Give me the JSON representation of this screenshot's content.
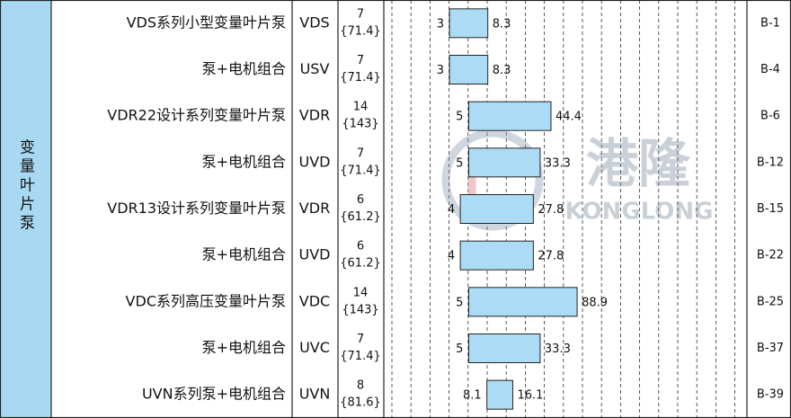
{
  "category": "变量叶片泵",
  "watermark": {
    "cn": "港隆",
    "en": "KONGLONG"
  },
  "rows": [
    {
      "name": "VDS系列小型变量叶片泵",
      "code": "VDS",
      "pressure": 7,
      "pressure_alt": "{71.4}",
      "min_flow": 3,
      "max_flow": 8.3,
      "page": "B-1"
    },
    {
      "name": "泵+电机组合",
      "code": "USV",
      "pressure": 7,
      "pressure_alt": "{71.4}",
      "min_flow": 3,
      "max_flow": 8.3,
      "page": "B-4"
    },
    {
      "name": "VDR22设计系列变量叶片泵",
      "code": "VDR",
      "pressure": 14,
      "pressure_alt": "{143}",
      "min_flow": 5,
      "max_flow": 44.4,
      "page": "B-6"
    },
    {
      "name": "泵+电机组合",
      "code": "UVD",
      "pressure": 7,
      "pressure_alt": "{71.4}",
      "min_flow": 5,
      "max_flow": 33.3,
      "page": "B-12"
    },
    {
      "name": "VDR13设计系列变量叶片泵",
      "code": "VDR",
      "pressure": 6,
      "pressure_alt": "{61.2}",
      "min_flow": 4,
      "max_flow": 27.8,
      "page": "B-15"
    },
    {
      "name": "泵+电机组合",
      "code": "UVD",
      "pressure": 6,
      "pressure_alt": "{61.2}",
      "min_flow": 4,
      "max_flow": 27.8,
      "page": "B-22"
    },
    {
      "name": "VDC系列高压变量叶片泵",
      "code": "VDC",
      "pressure": 14,
      "pressure_alt": "{143}",
      "min_flow": 5,
      "max_flow": 88.9,
      "page": "B-25"
    },
    {
      "name": "泵+电机组合",
      "code": "UVC",
      "pressure": 7,
      "pressure_alt": "{71.4}",
      "min_flow": 5,
      "max_flow": 33.3,
      "page": "B-37"
    },
    {
      "name": "UVN系列泵+电机组合",
      "code": "UVN",
      "pressure": 8,
      "pressure_alt": "{81.6}",
      "min_flow": 8.1,
      "max_flow": 16.1,
      "page": "B-39"
    }
  ]
}
